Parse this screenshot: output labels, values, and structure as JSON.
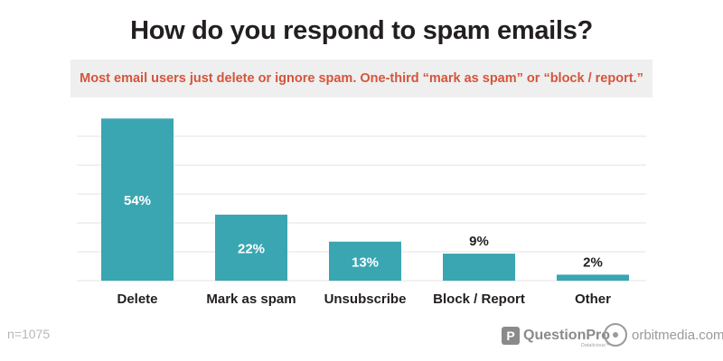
{
  "chart_data": {
    "type": "bar",
    "title": "How do you respond to spam emails?",
    "subtitle": "Most email users just delete or ignore spam. One-third “mark as spam” or “block / report.”",
    "categories": [
      "Delete",
      "Mark as spam",
      "Unsubscribe",
      "Block / Report",
      "Other"
    ],
    "values": [
      54,
      22,
      13,
      9,
      2
    ],
    "data_labels": [
      "54%",
      "22%",
      "13%",
      "9%",
      "2%"
    ],
    "ylim": [
      0,
      55
    ],
    "grid": true,
    "bar_color": "#3aa6b2",
    "gridline_color": "#e3e3e3"
  },
  "footer": {
    "sample_size": "n=1075",
    "questionpro_mark": "P",
    "questionpro_name": "QuestionPro",
    "questionpro_tagline": "Datalicious™",
    "orbit_name": "orbitmedia.com"
  },
  "colors": {
    "title": "#231f20",
    "subtitle": "#d4553b",
    "subtitle_bg": "#efefef",
    "label_inside": "#ffffff",
    "label_outside": "#231f20"
  }
}
